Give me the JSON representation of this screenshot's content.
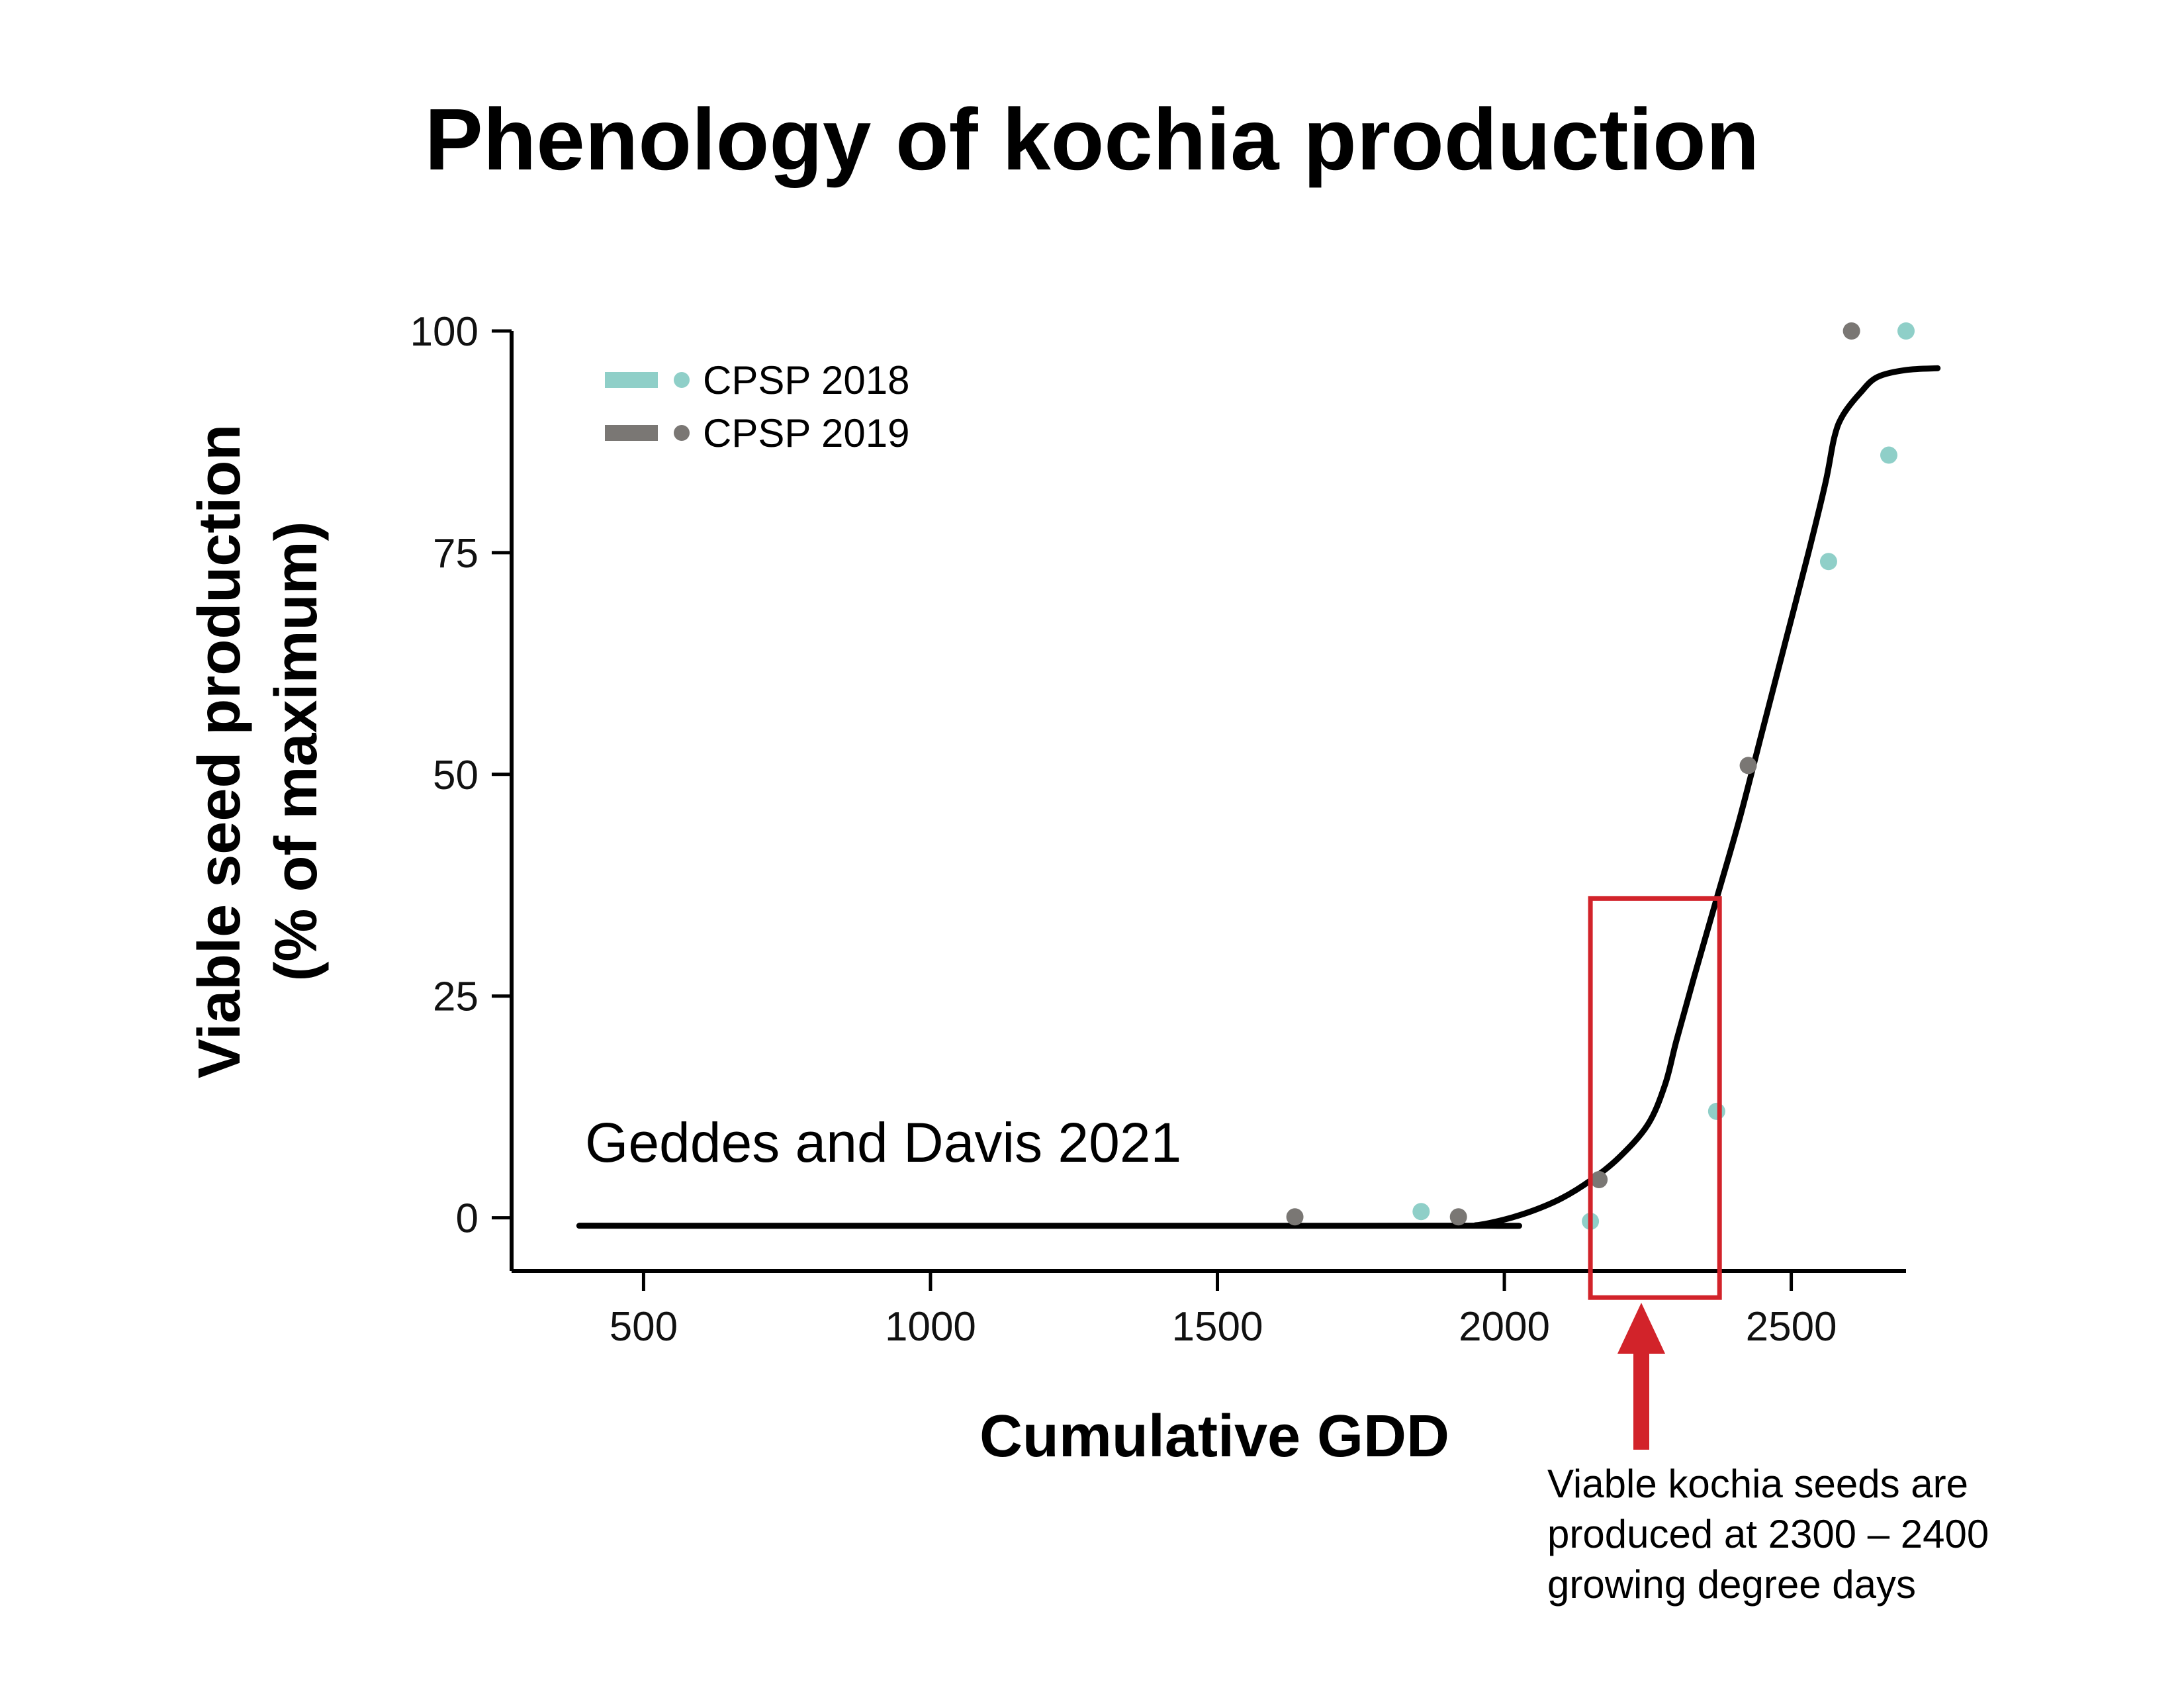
{
  "chart_data": {
    "type": "scatter",
    "title": "Phenology of kochia production",
    "xlabel": "Cumulative GDD",
    "ylabel_lines": [
      "Viable seed production",
      "(% of maximum)"
    ],
    "xlim": [
      270,
      2700
    ],
    "ylim": [
      -6,
      100
    ],
    "x_ticks": [
      500,
      1000,
      1500,
      2000,
      2500
    ],
    "y_ticks": [
      0,
      25,
      50,
      75,
      100
    ],
    "legend_position": "top-left",
    "grid": false,
    "series": [
      {
        "name": "CPSP 2018",
        "color": "#8fcfc8",
        "points": [
          [
            1855,
            0.7
          ],
          [
            2150,
            -0.4
          ],
          [
            2370,
            12
          ],
          [
            2565,
            74
          ],
          [
            2670,
            86
          ],
          [
            2700,
            100
          ]
        ]
      },
      {
        "name": "CPSP 2019",
        "color": "#7a7774",
        "points": [
          [
            1635,
            0.1
          ],
          [
            1920,
            0.1
          ],
          [
            2165,
            4.3
          ],
          [
            2425,
            51
          ],
          [
            2605,
            100
          ]
        ]
      }
    ],
    "fit_curve": {
      "color": "#000000",
      "points": [
        [
          388,
          -0.9
        ],
        [
          1900,
          -0.9
        ],
        [
          1950,
          -0.85
        ],
        [
          2000,
          -0.2
        ],
        [
          2050,
          0.8
        ],
        [
          2100,
          2.2
        ],
        [
          2150,
          4.2
        ],
        [
          2200,
          6.8
        ],
        [
          2250,
          10.5
        ],
        [
          2280,
          15
        ],
        [
          2300,
          20
        ],
        [
          2330,
          27
        ],
        [
          2370,
          36
        ],
        [
          2410,
          45
        ],
        [
          2450,
          55
        ],
        [
          2490,
          65
        ],
        [
          2530,
          75
        ],
        [
          2560,
          83
        ],
        [
          2575,
          88
        ],
        [
          2590,
          90.5
        ],
        [
          2620,
          93
        ],
        [
          2650,
          94.8
        ],
        [
          2700,
          95.6
        ],
        [
          2755,
          95.8
        ]
      ]
    },
    "annotations": {
      "curve_label": "Geddes and Davis 2021",
      "highlight_range": {
        "x": [
          2150,
          2375
        ],
        "y": [
          -9,
          36
        ]
      },
      "note_lines": [
        "Viable kochia seeds are",
        "produced at 2300 – 2400",
        "growing degree days"
      ],
      "accent_color": "#d2232a"
    }
  }
}
